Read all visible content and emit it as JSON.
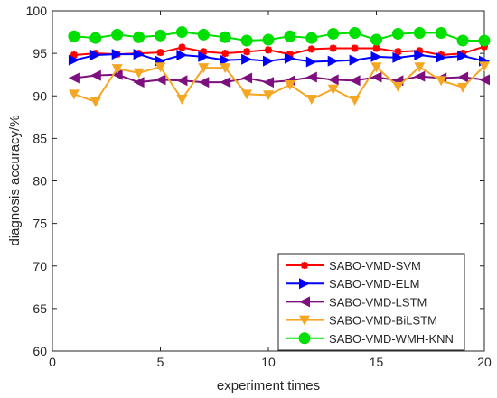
{
  "chart_data": {
    "type": "line",
    "xlabel": "experiment times",
    "ylabel": "diagnosis accuracy/%",
    "xlim": [
      0,
      20
    ],
    "ylim": [
      60,
      100
    ],
    "xticks": [
      0,
      5,
      10,
      15,
      20
    ],
    "yticks": [
      60,
      65,
      70,
      75,
      80,
      85,
      90,
      95,
      100
    ],
    "grid": false,
    "legend_position": "bottom-right",
    "x": [
      1,
      2,
      3,
      4,
      5,
      6,
      7,
      8,
      9,
      10,
      11,
      12,
      13,
      14,
      15,
      16,
      17,
      18,
      19,
      20
    ],
    "series": [
      {
        "name": "SABO-VMD-SVM",
        "color": "#ff0000",
        "marker": "star",
        "values": [
          94.8,
          95.0,
          94.9,
          95.0,
          95.1,
          95.7,
          95.2,
          95.0,
          95.2,
          95.4,
          94.9,
          95.5,
          95.6,
          95.6,
          95.6,
          95.2,
          95.3,
          94.8,
          95.0,
          95.8
        ]
      },
      {
        "name": "SABO-VMD-ELM",
        "color": "#0000ff",
        "marker": "triangle-right",
        "values": [
          94.2,
          94.8,
          94.9,
          94.9,
          94.1,
          94.8,
          94.6,
          94.2,
          94.3,
          94.1,
          94.4,
          94.0,
          94.1,
          94.2,
          94.6,
          94.5,
          94.8,
          94.5,
          94.7,
          94.1
        ]
      },
      {
        "name": "SABO-VMD-LSTM",
        "color": "#7e0f7e",
        "marker": "triangle-left",
        "values": [
          92.1,
          92.4,
          92.5,
          91.6,
          91.9,
          91.8,
          91.6,
          91.6,
          92.1,
          91.6,
          91.8,
          92.2,
          91.9,
          91.8,
          92.2,
          91.8,
          92.3,
          92.1,
          92.2,
          91.9
        ]
      },
      {
        "name": "SABO-VMD-BiLSTM",
        "color": "#f5a623",
        "marker": "triangle-down",
        "values": [
          90.2,
          89.3,
          93.2,
          92.7,
          93.4,
          89.6,
          93.3,
          93.3,
          90.2,
          90.1,
          91.3,
          89.6,
          90.8,
          89.5,
          93.4,
          91.1,
          93.4,
          91.8,
          91.0,
          93.5
        ]
      },
      {
        "name": "SABO-VMD-WMH-KNN",
        "color": "#00e000",
        "marker": "circle",
        "values": [
          97.0,
          96.8,
          97.2,
          96.9,
          97.1,
          97.5,
          97.2,
          96.9,
          96.5,
          96.6,
          97.0,
          96.8,
          97.3,
          97.4,
          96.6,
          97.3,
          97.4,
          97.4,
          96.5,
          96.5
        ]
      }
    ]
  }
}
